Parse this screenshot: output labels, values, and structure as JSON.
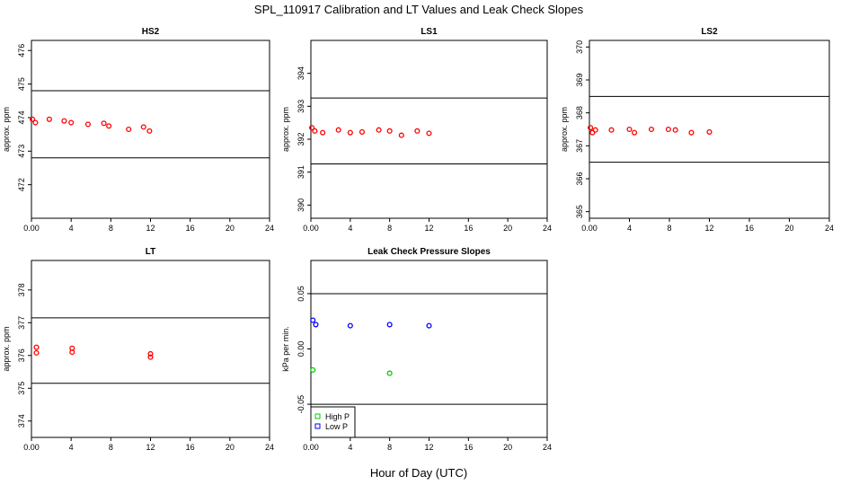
{
  "figure": {
    "title": "SPL_110917  Calibration and LT Values and Leak Check Slopes",
    "xlabel": "Hour of Day (UTC)"
  },
  "colors": {
    "cal": "#ff0000",
    "high_p": "#00cc00",
    "low_p": "#0000ff"
  },
  "chart_data": [
    {
      "id": "hs2",
      "type": "scatter",
      "title": "HS2",
      "ylabel": "approx. ppm",
      "xlim": [
        0,
        24
      ],
      "xticks": [
        0,
        4,
        8,
        12,
        16,
        20,
        24
      ],
      "ylim": [
        471,
        476.3
      ],
      "yticks": [
        472,
        473,
        474,
        475,
        476
      ],
      "hlines": [
        474.8,
        472.8
      ],
      "series": [
        {
          "name": "cal",
          "color": "#ff0000",
          "x": [
            0.1,
            0.4,
            1.8,
            3.3,
            4,
            5.7,
            7.3,
            7.8,
            9.8,
            11.3,
            11.9
          ],
          "y": [
            473.95,
            473.85,
            473.95,
            473.9,
            473.85,
            473.8,
            473.83,
            473.75,
            473.65,
            473.72,
            473.6
          ]
        }
      ]
    },
    {
      "id": "ls1",
      "type": "scatter",
      "title": "LS1",
      "ylabel": "approx. ppm",
      "xlim": [
        0,
        24
      ],
      "xticks": [
        0,
        4,
        8,
        12,
        16,
        20,
        24
      ],
      "ylim": [
        389.6,
        395
      ],
      "yticks": [
        390,
        391,
        392,
        393,
        394
      ],
      "hlines": [
        393.25,
        391.25
      ],
      "series": [
        {
          "name": "cal",
          "color": "#ff0000",
          "x": [
            0.1,
            0.4,
            1.2,
            2.8,
            4,
            5.2,
            6.9,
            8,
            9.2,
            10.8,
            12
          ],
          "y": [
            392.35,
            392.25,
            392.2,
            392.28,
            392.2,
            392.22,
            392.28,
            392.25,
            392.12,
            392.25,
            392.18
          ]
        }
      ]
    },
    {
      "id": "ls2",
      "type": "scatter",
      "title": "LS2",
      "ylabel": "approx. ppm",
      "xlim": [
        0,
        24
      ],
      "xticks": [
        0,
        4,
        8,
        12,
        16,
        20,
        24
      ],
      "ylim": [
        364.8,
        370.2
      ],
      "yticks": [
        365,
        366,
        367,
        368,
        369,
        370
      ],
      "hlines": [
        368.5,
        366.5
      ],
      "series": [
        {
          "name": "cal",
          "color": "#ff0000",
          "x": [
            0.1,
            0.3,
            0.6,
            2.2,
            4,
            4.5,
            6.2,
            7.9,
            8.6,
            10.2,
            12
          ],
          "y": [
            367.55,
            367.4,
            367.48,
            367.48,
            367.5,
            367.4,
            367.5,
            367.5,
            367.48,
            367.4,
            367.42
          ]
        }
      ]
    },
    {
      "id": "lt",
      "type": "scatter",
      "title": "LT",
      "ylabel": "approx. ppm",
      "xlim": [
        0,
        24
      ],
      "xticks": [
        0,
        4,
        8,
        12,
        16,
        20,
        24
      ],
      "ylim": [
        373.5,
        378.9
      ],
      "yticks": [
        374,
        375,
        376,
        377,
        378
      ],
      "hlines": [
        377.15,
        375.15
      ],
      "series": [
        {
          "name": "cal",
          "color": "#ff0000",
          "x": [
            0.5,
            0.5,
            4.1,
            4.1,
            12,
            12
          ],
          "y": [
            376.25,
            376.08,
            376.22,
            376.1,
            376.05,
            375.95
          ]
        }
      ]
    },
    {
      "id": "leak",
      "type": "scatter",
      "title": "Leak Check Pressure Slopes",
      "ylabel": "kPa per min.",
      "xlim": [
        0,
        24
      ],
      "xticks": [
        0,
        4,
        8,
        12,
        16,
        20,
        24
      ],
      "ylim": [
        -0.08,
        0.08
      ],
      "yticks": [
        -0.05,
        0,
        0.05
      ],
      "hlines": [
        0.05,
        -0.05
      ],
      "series": [
        {
          "name": "High P",
          "color": "#00cc00",
          "x": [
            0.2,
            8
          ],
          "y": [
            -0.019,
            -0.022
          ]
        },
        {
          "name": "Low P",
          "color": "#0000ff",
          "x": [
            0.2,
            0.5,
            4,
            8,
            12
          ],
          "y": [
            0.026,
            0.022,
            0.021,
            0.022,
            0.021
          ]
        }
      ],
      "legend": {
        "position": "bottom-left",
        "entries": [
          "High P",
          "Low P"
        ]
      }
    }
  ]
}
